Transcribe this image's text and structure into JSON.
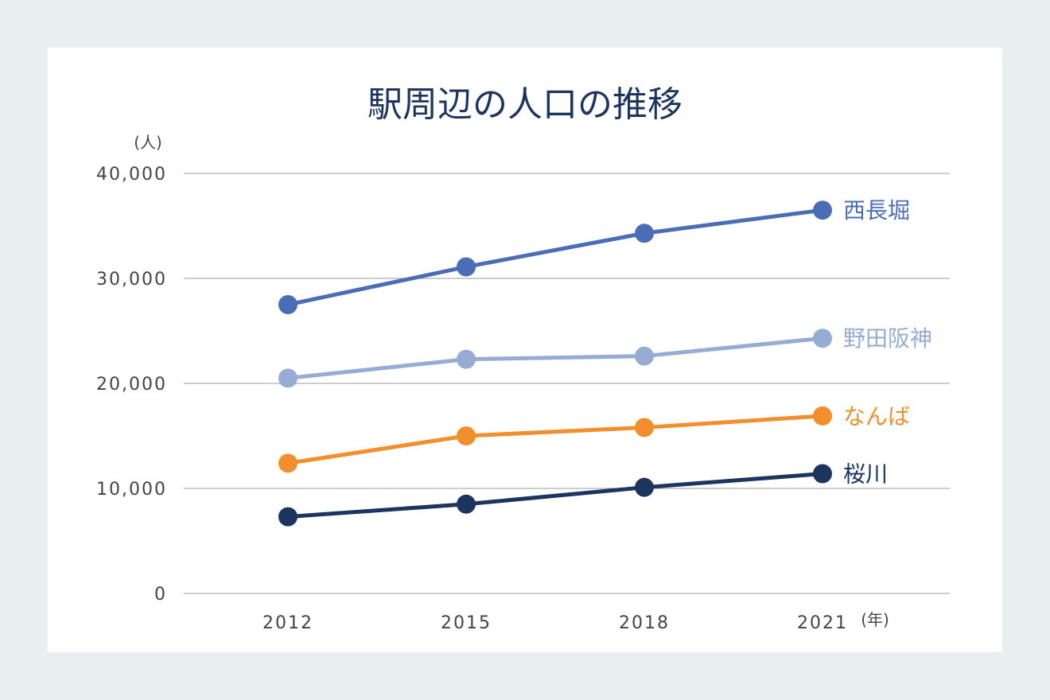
{
  "chart_data": {
    "type": "line",
    "title": "駅周辺の人口の推移",
    "ylabel": "(人)",
    "xlabel": "(年)",
    "x": [
      "2012",
      "2015",
      "2018",
      "2021"
    ],
    "ylim": [
      0,
      40000
    ],
    "yticks": [
      0,
      10000,
      20000,
      30000,
      40000
    ],
    "ytick_labels": [
      "0",
      "10,000",
      "20,000",
      "30,000",
      "40,000"
    ],
    "grid": true,
    "series": [
      {
        "name": "西長堀",
        "color": "#4a6db5",
        "values": [
          27500,
          31100,
          34300,
          36500
        ]
      },
      {
        "name": "野田阪神",
        "color": "#96acd4",
        "values": [
          20500,
          22300,
          22600,
          24300
        ]
      },
      {
        "name": "なんば",
        "color": "#f28e2b",
        "values": [
          12400,
          15000,
          15800,
          16900
        ]
      },
      {
        "name": "桜川",
        "color": "#1c355e",
        "values": [
          7300,
          8500,
          10100,
          11400
        ]
      }
    ]
  }
}
